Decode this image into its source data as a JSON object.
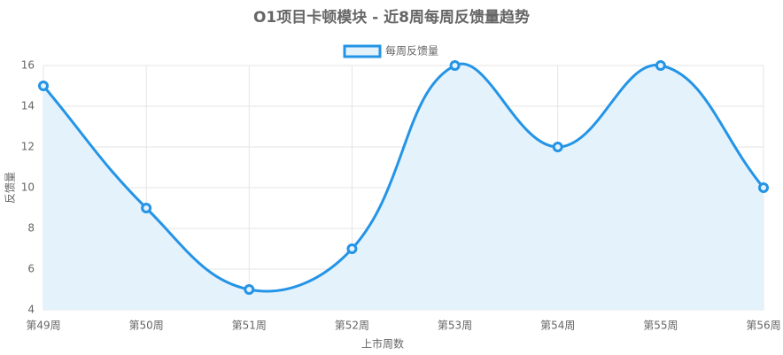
{
  "chart_data": {
    "type": "line",
    "title": "O1项目卡顿模块 - 近8周每周反馈量趋势",
    "x_label": "上市周数",
    "y_label": "反馈量",
    "categories": [
      "第49周",
      "第50周",
      "第51周",
      "第52周",
      "第53周",
      "第54周",
      "第55周",
      "第56周"
    ],
    "series": [
      {
        "name": "每周反馈量",
        "color": "#2494e6",
        "fill": "#e4f2fc",
        "values": [
          15,
          9,
          5,
          7,
          16,
          12,
          16,
          10
        ]
      }
    ],
    "ylim": [
      4,
      16
    ],
    "yticks": [
      4,
      6,
      8,
      10,
      12,
      14,
      16
    ],
    "grid": true,
    "smooth": true,
    "legend": "top"
  }
}
